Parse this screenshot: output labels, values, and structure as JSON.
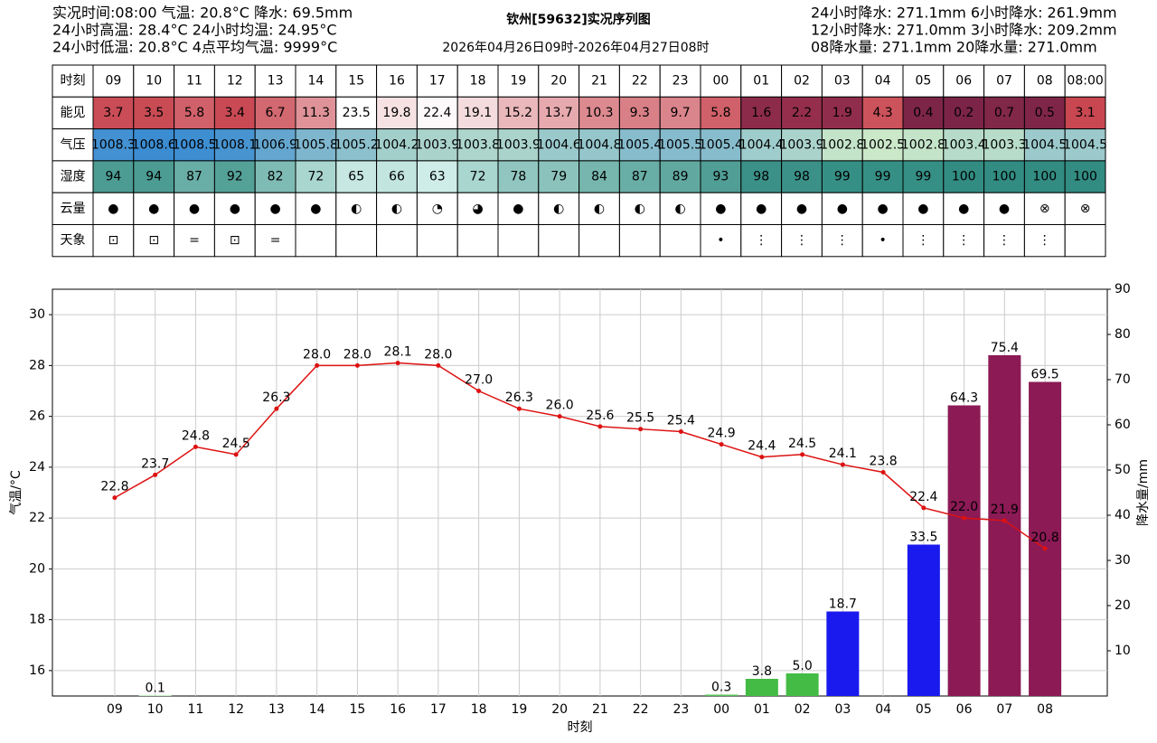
{
  "header": {
    "left_lines": [
      "实况时间:08:00 气温: 20.8°C 降水: 69.5mm",
      "24小时高温: 28.4°C 24小时均温: 24.95°C",
      "24小时低温: 20.8°C 4点平均气温: 9999°C"
    ],
    "title": "钦州[59632]实况序列图",
    "subtitle": "2026年04月26日09时-2026年04月27日08时",
    "right_lines": [
      "24小时降水: 271.1mm 6小时降水: 261.9mm",
      "12小时降水: 271.0mm 3小时降水: 209.2mm",
      "08降水量: 271.1mm 20降水量: 271.0mm"
    ]
  },
  "table": {
    "row_labels": [
      "时刻",
      "能见",
      "气压",
      "湿度",
      "云量",
      "天象"
    ],
    "columns": [
      "09",
      "10",
      "11",
      "12",
      "13",
      "14",
      "15",
      "16",
      "17",
      "18",
      "19",
      "20",
      "21",
      "22",
      "23",
      "00",
      "01",
      "02",
      "03",
      "04",
      "05",
      "06",
      "07",
      "08",
      "08:00"
    ],
    "visibility": [
      "3.7",
      "3.5",
      "5.8",
      "3.4",
      "6.7",
      "11.3",
      "23.5",
      "19.8",
      "22.4",
      "19.1",
      "15.2",
      "13.7",
      "10.3",
      "9.3",
      "9.7",
      "5.8",
      "1.6",
      "2.2",
      "1.9",
      "4.3",
      "0.4",
      "0.2",
      "0.7",
      "0.5",
      "3.1"
    ],
    "pressure": [
      "1008.3",
      "1008.6",
      "1008.5",
      "1008.1",
      "1006.9",
      "1005.8",
      "1005.2",
      "1004.2",
      "1003.9",
      "1003.8",
      "1003.9",
      "1004.6",
      "1004.8",
      "1005.4",
      "1005.5",
      "1005.4",
      "1004.4",
      "1003.9",
      "1002.8",
      "1002.5",
      "1002.8",
      "1003.4",
      "1003.3",
      "1004.5",
      "1004.5"
    ],
    "humidity": [
      94,
      94,
      87,
      92,
      82,
      72,
      65,
      66,
      63,
      72,
      78,
      79,
      84,
      87,
      89,
      93,
      98,
      98,
      99,
      99,
      99,
      100,
      100,
      100,
      100
    ],
    "cloud": [
      "●",
      "●",
      "●",
      "●",
      "●",
      "●",
      "◐",
      "◐",
      "◔",
      "◕",
      "●",
      "◐",
      "◐",
      "◐",
      "◐",
      "●",
      "●",
      "●",
      "●",
      "●",
      "●",
      "●",
      "●",
      "⊗",
      "⊗"
    ],
    "weather": [
      "⊡",
      "⊡",
      "=",
      "⊡",
      "=",
      null,
      null,
      null,
      null,
      null,
      null,
      null,
      null,
      null,
      null,
      "•",
      "⋮",
      "⋮",
      "⋮",
      "•",
      "⋮",
      "⋮",
      "⋮",
      "⋮",
      null
    ]
  },
  "chart_data": {
    "type": "combo",
    "xlabel": "时刻",
    "ylabel": "气温/°C",
    "y2label": "降水量/mm",
    "categories": [
      "09",
      "10",
      "11",
      "12",
      "13",
      "14",
      "15",
      "16",
      "17",
      "18",
      "19",
      "20",
      "21",
      "22",
      "23",
      "00",
      "01",
      "02",
      "03",
      "04",
      "05",
      "06",
      "07",
      "08"
    ],
    "ylim": [
      15,
      31
    ],
    "yticks": [
      16,
      18,
      20,
      22,
      24,
      26,
      28,
      30
    ],
    "y2lim": [
      0,
      90
    ],
    "y2ticks": [
      10,
      20,
      30,
      40,
      50,
      60,
      70,
      80,
      90
    ],
    "grid": true,
    "series": [
      {
        "type": "line",
        "color": "#dd1111",
        "values": [
          22.8,
          23.7,
          24.8,
          24.5,
          26.3,
          28.0,
          28.0,
          28.1,
          28.0,
          27.0,
          26.3,
          26.0,
          25.6,
          25.5,
          25.4,
          24.9,
          24.4,
          24.5,
          24.1,
          23.8,
          22.4,
          22.0,
          21.9,
          20.8
        ],
        "value_labels": [
          "22.8",
          "23.7",
          "24.8",
          "24.5",
          "26.3",
          "28.0",
          "28.0",
          "28.1",
          "28.0",
          "27.0",
          "26.3",
          "26.0",
          "25.6",
          "25.5",
          "25.4",
          "24.9",
          "24.4",
          "24.5",
          "24.1",
          "23.8",
          "22.4",
          "22.0",
          "21.9",
          "20.8"
        ]
      },
      {
        "type": "bar",
        "axis": "y2",
        "values": [
          null,
          0.1,
          null,
          null,
          null,
          null,
          null,
          null,
          null,
          null,
          null,
          null,
          null,
          null,
          null,
          0.3,
          3.8,
          5.0,
          18.7,
          null,
          33.5,
          64.3,
          75.4,
          69.5
        ],
        "value_labels": [
          null,
          "0.1",
          null,
          null,
          null,
          null,
          null,
          null,
          null,
          null,
          null,
          null,
          null,
          null,
          null,
          "0.3",
          "3.8",
          "5.0",
          "18.7",
          null,
          "33.5",
          "64.3",
          "75.4",
          "69.5"
        ],
        "colors": [
          null,
          "#8fe08f",
          null,
          null,
          null,
          null,
          null,
          null,
          null,
          null,
          null,
          null,
          null,
          null,
          null,
          "#55c055",
          "#44bb44",
          "#44bb44",
          "#1a1aee",
          null,
          "#1a1aee",
          "#8b1a55",
          "#8b1a55",
          "#8b1a55"
        ]
      }
    ]
  }
}
